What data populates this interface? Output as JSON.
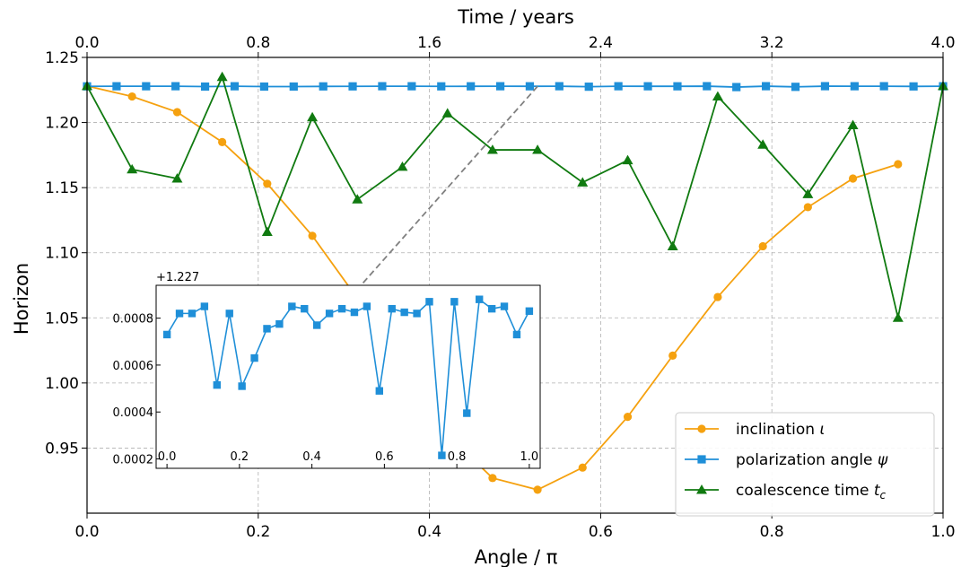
{
  "chart_data": [
    {
      "type": "line",
      "title": "",
      "xlabel": "Angle / π",
      "ylabel": "Horizon",
      "top_xlabel": "Time / years",
      "xlim": [
        0.0,
        1.0
      ],
      "ylim": [
        0.9,
        1.25
      ],
      "xticks": [
        0.0,
        0.2,
        0.4,
        0.6,
        0.8,
        1.0
      ],
      "xtick_labels": [
        "0.0",
        "0.2",
        "0.4",
        "0.6",
        "0.8",
        "1.0"
      ],
      "yticks": [
        0.95,
        1.0,
        1.05,
        1.1,
        1.15,
        1.2,
        1.25
      ],
      "ytick_labels": [
        "0.95",
        "1.00",
        "1.05",
        "1.10",
        "1.15",
        "1.20",
        "1.25"
      ],
      "top_xlim": [
        0.0,
        4.0
      ],
      "top_xticks": [
        0.0,
        0.8,
        1.6,
        2.4,
        3.2,
        4.0
      ],
      "top_xtick_labels": [
        "0.0",
        "0.8",
        "1.6",
        "2.4",
        "3.2",
        "4.0"
      ],
      "grid": true,
      "legend_position": "lower-right",
      "series": [
        {
          "name": "inclination ι",
          "legend_plain": "inclination ",
          "legend_math": "ι",
          "color": "#f5a10f",
          "marker": "circle",
          "x": [
            0.0,
            0.0526,
            0.1053,
            0.1579,
            0.2105,
            0.2632,
            0.3158,
            0.3684,
            0.4211,
            0.4737,
            0.5263,
            0.5789,
            0.6316,
            0.6842,
            0.7368,
            0.7895,
            0.8421,
            0.8947,
            0.9474
          ],
          "values": [
            1.228,
            1.22,
            1.208,
            1.185,
            1.153,
            1.113,
            1.065,
            1.01,
            0.96,
            0.927,
            0.918,
            0.935,
            0.974,
            1.021,
            1.066,
            1.105,
            1.135,
            1.157,
            1.168
          ]
        },
        {
          "name": "polarization angle ψ",
          "legend_plain": "polarization angle ",
          "legend_math": "ψ",
          "color": "#1f8fd8",
          "marker": "square",
          "x": [
            0.0,
            0.0345,
            0.069,
            0.1034,
            0.1379,
            0.1724,
            0.2069,
            0.2414,
            0.2759,
            0.3103,
            0.3448,
            0.3793,
            0.4138,
            0.4483,
            0.4828,
            0.5172,
            0.5517,
            0.5862,
            0.6207,
            0.6552,
            0.6897,
            0.7241,
            0.7586,
            0.7931,
            0.8276,
            0.8621,
            0.8966,
            0.931,
            0.9655,
            1.0
          ],
          "values": [
            1.22777,
            1.22785,
            1.22785,
            1.22788,
            1.2276,
            1.22785,
            1.2276,
            1.22763,
            1.22775,
            1.22777,
            1.22788,
            1.22786,
            1.22778,
            1.22782,
            1.22787,
            1.22784,
            1.22788,
            1.22751,
            1.22787,
            1.22784,
            1.22782,
            1.2279,
            1.22722,
            1.2279,
            1.2274,
            1.22791,
            1.22787,
            1.22789,
            1.22773,
            1.22785
          ]
        },
        {
          "name": "coalescence time t_c",
          "legend_plain": "coalescence time ",
          "legend_math": "t",
          "legend_sub": "c",
          "color": "#107a10",
          "marker": "triangle",
          "x": [
            0.0,
            0.0526,
            0.1053,
            0.1579,
            0.2105,
            0.2632,
            0.3158,
            0.3684,
            0.4211,
            0.4737,
            0.5263,
            0.5789,
            0.6316,
            0.6842,
            0.7368,
            0.7895,
            0.8421,
            0.8947,
            0.9474,
            1.0
          ],
          "values": [
            1.228,
            1.164,
            1.157,
            1.235,
            1.116,
            1.204,
            1.141,
            1.166,
            1.207,
            1.179,
            1.179,
            1.154,
            1.171,
            1.105,
            1.22,
            1.183,
            1.145,
            1.198,
            1.05,
            1.228
          ]
        }
      ],
      "annotations": [
        {
          "type": "connector",
          "style": "dashed",
          "color": "#808080",
          "from": [
            0.5263,
            1.2278
          ],
          "to": [
            0.32,
            1.075
          ]
        }
      ]
    },
    {
      "type": "line",
      "role": "inset",
      "offset_label": "+1.227",
      "xlim": [
        -0.03,
        1.03
      ],
      "ylim": [
        0.00016,
        0.00094
      ],
      "xticks": [
        0.0,
        0.2,
        0.4,
        0.6,
        0.8,
        1.0
      ],
      "xtick_labels": [
        "0.0",
        "0.2",
        "0.4",
        "0.6",
        "0.8",
        "1.0"
      ],
      "yticks": [
        0.0002,
        0.0004,
        0.0006,
        0.0008
      ],
      "ytick_labels": [
        "0.0002",
        "0.0004",
        "0.0006",
        "0.0008"
      ],
      "series": [
        {
          "name": "polarization angle ψ",
          "color": "#1f8fd8",
          "marker": "square",
          "x": [
            0.0,
            0.0345,
            0.069,
            0.1034,
            0.1379,
            0.1724,
            0.2069,
            0.2414,
            0.2759,
            0.3103,
            0.3448,
            0.3793,
            0.4138,
            0.4483,
            0.4828,
            0.5172,
            0.5517,
            0.5862,
            0.6207,
            0.6552,
            0.6897,
            0.7241,
            0.7586,
            0.7931,
            0.8276,
            0.8621,
            0.8966,
            0.931,
            0.9655,
            1.0
          ],
          "values": [
            0.00073,
            0.00082,
            0.00082,
            0.00085,
            0.000515,
            0.00082,
            0.00051,
            0.00063,
            0.000755,
            0.000775,
            0.00085,
            0.00084,
            0.00077,
            0.00082,
            0.00084,
            0.000825,
            0.00085,
            0.00049,
            0.00084,
            0.000825,
            0.00082,
            0.00087,
            0.000215,
            0.00087,
            0.000395,
            0.00088,
            0.00084,
            0.00085,
            0.00073,
            0.00083
          ]
        }
      ]
    }
  ]
}
